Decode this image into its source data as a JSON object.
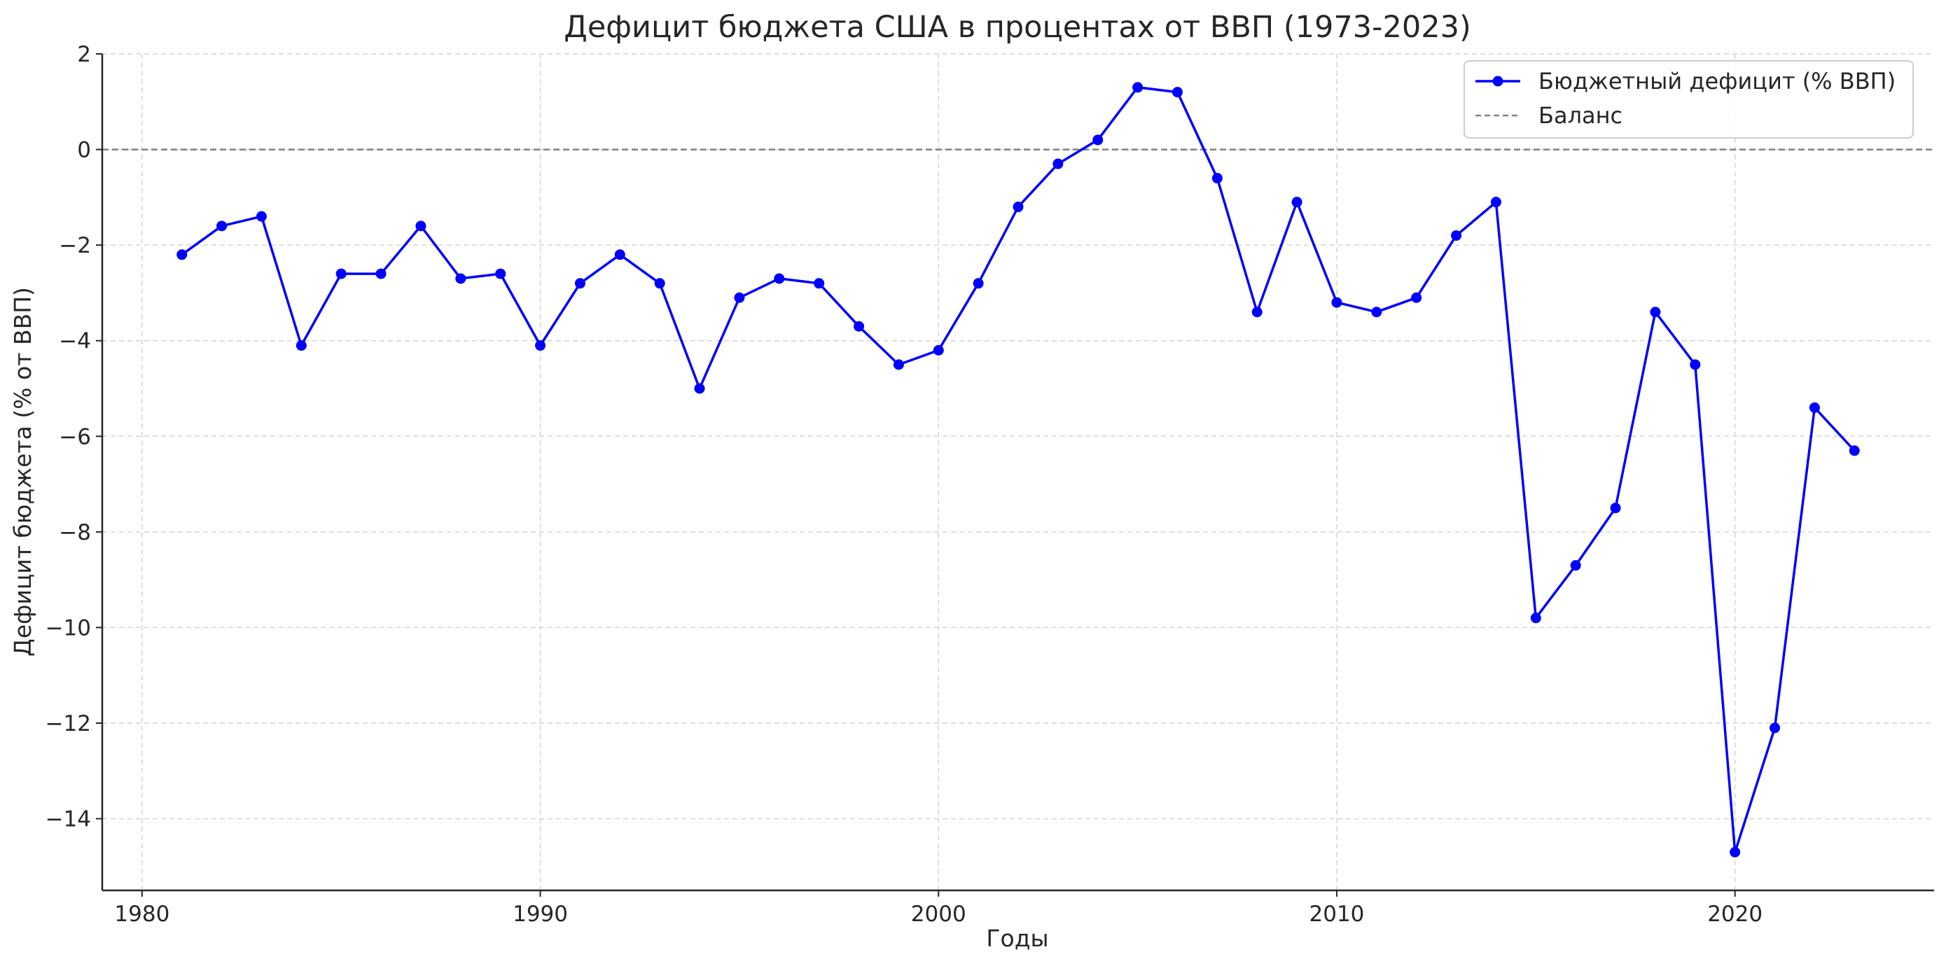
{
  "chart_data": {
    "type": "line",
    "title": "Дефицит бюджета США в процентах от ВВП (1973-2023)",
    "xlabel": "Годы",
    "ylabel": "Дефицит бюджета (% от ВВП)",
    "xlim": [
      1979,
      2025
    ],
    "ylim": [
      -15.5,
      2.0
    ],
    "xticks": [
      1980,
      1990,
      2000,
      2010,
      2020
    ],
    "yticks": [
      2,
      0,
      -2,
      -4,
      -6,
      -8,
      -10,
      -12,
      -14
    ],
    "grid": true,
    "legend_position": "top-right",
    "x": [
      1981,
      1982,
      1983,
      1984,
      1985,
      1986,
      1987,
      1988,
      1989,
      1990,
      1991,
      1992,
      1993,
      1994,
      1995,
      1996,
      1997,
      1998,
      1999,
      2000,
      2001,
      2002,
      2003,
      2004,
      2005,
      2006,
      2007,
      2008,
      2009,
      2010,
      2011,
      2012,
      2013,
      2014,
      2015,
      2016,
      2017,
      2018,
      2019,
      2020,
      2021,
      2022,
      2023
    ],
    "series": [
      {
        "name": "Бюджетный дефицит (% ВВП)",
        "color": "#0000ff",
        "marker": "circle",
        "values": [
          -2.2,
          -1.6,
          -1.4,
          -4.1,
          -2.6,
          -2.6,
          -1.6,
          -2.7,
          -2.6,
          -4.1,
          -2.8,
          -2.2,
          -2.8,
          -5.0,
          -3.1,
          -2.7,
          -2.8,
          -3.7,
          -4.5,
          -4.2,
          -2.8,
          -1.2,
          -0.3,
          0.2,
          1.3,
          1.2,
          -0.6,
          -3.4,
          -1.1,
          -3.2,
          -3.4,
          -3.1,
          -1.8,
          -1.1,
          -9.8,
          -8.7,
          -7.5,
          -3.4,
          -4.5,
          -14.7,
          -12.1,
          -5.4,
          -6.3
        ]
      }
    ],
    "reference_line": {
      "name": "Баланс",
      "y": 0,
      "color": "#808080",
      "style": "dashed"
    }
  }
}
